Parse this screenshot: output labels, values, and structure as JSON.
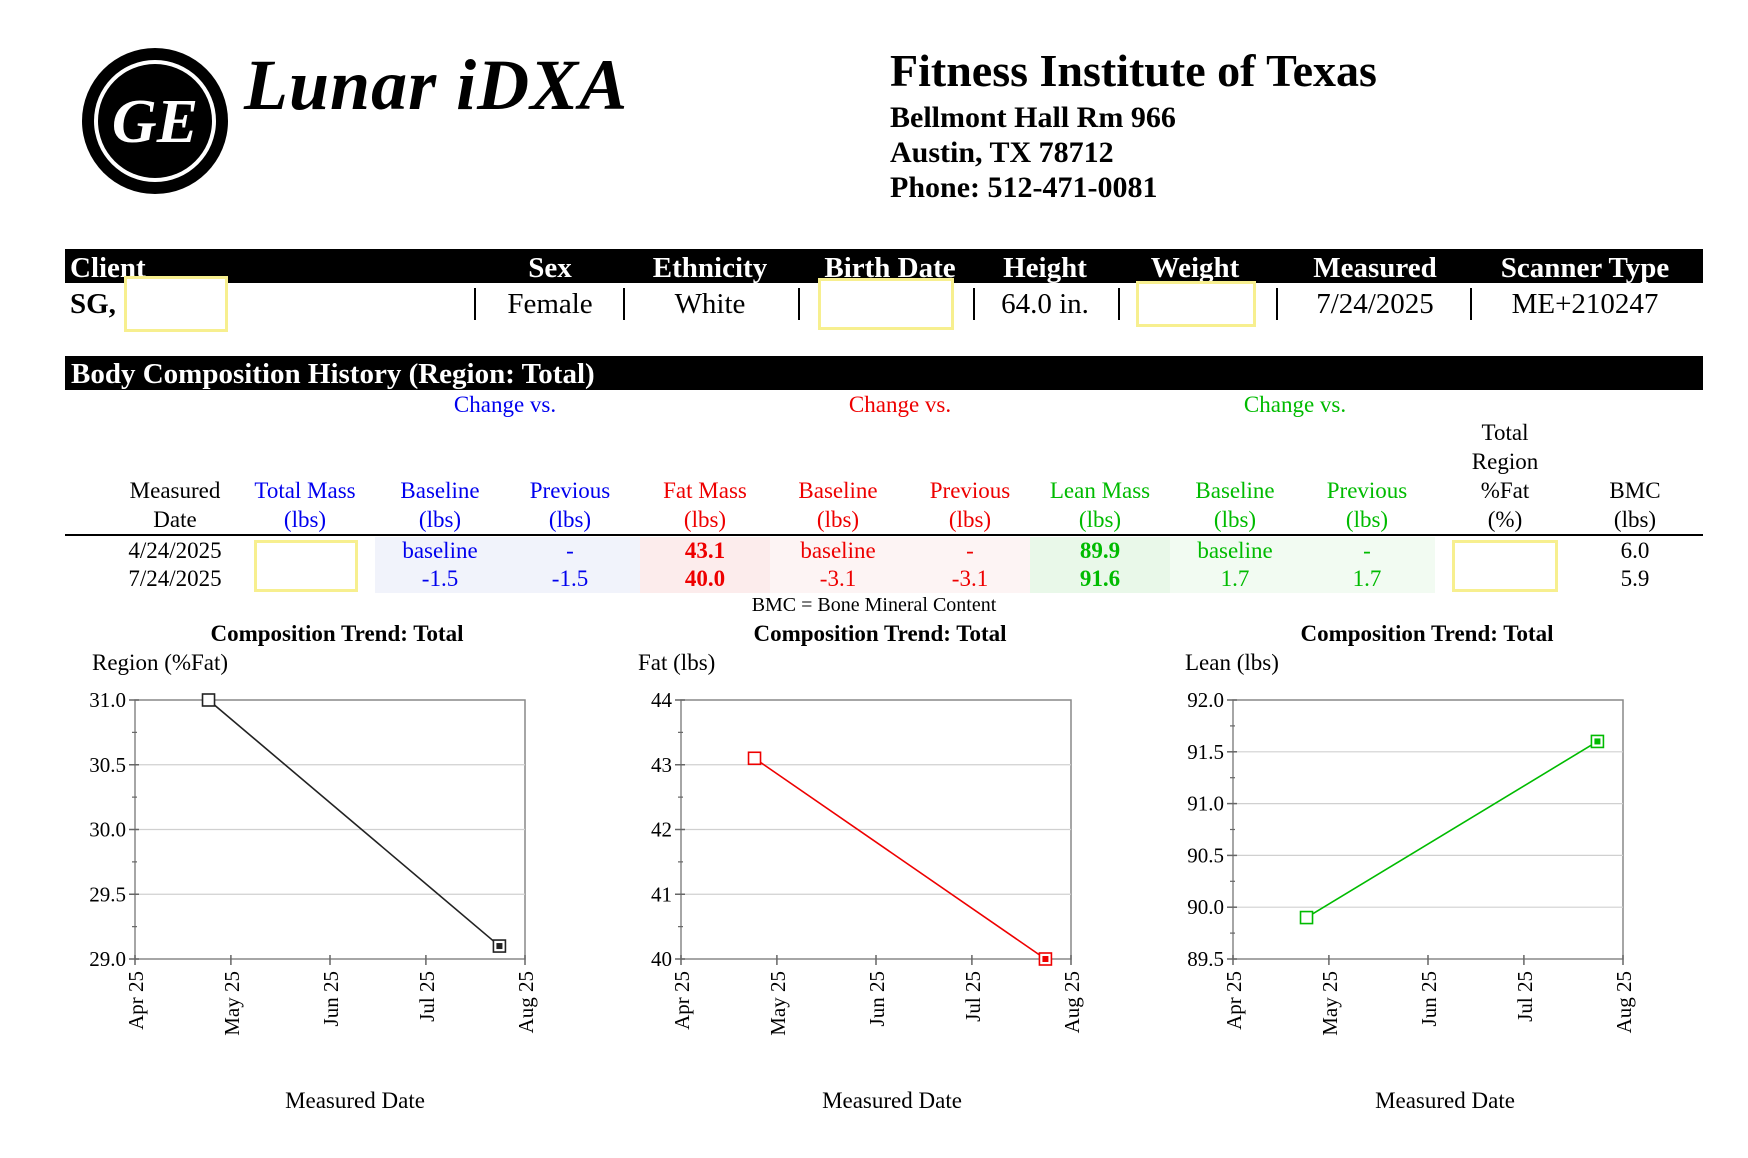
{
  "header": {
    "brand": "Lunar iDXA",
    "logo_text": "GE",
    "org_name": "Fitness Institute of Texas",
    "address_line1": "Bellmont Hall Rm 966",
    "address_line2": "Austin, TX 78712",
    "phone": "Phone: 512-471-0081"
  },
  "client": {
    "labels": {
      "client": "Client",
      "sex": "Sex",
      "ethnicity": "Ethnicity",
      "birth_date": "Birth Date",
      "height": "Height",
      "weight": "Weight",
      "measured": "Measured",
      "scanner_type": "Scanner Type"
    },
    "values": {
      "client": "SG,",
      "sex": "Female",
      "ethnicity": "White",
      "height": "64.0 in.",
      "measured": "7/24/2025",
      "scanner_type": "ME+210247"
    }
  },
  "history": {
    "title": "Body Composition History (Region: Total)",
    "group_labels": {
      "total": "Change vs.",
      "fat": "Change vs.",
      "lean": "Change vs."
    },
    "columns": {
      "measured_date": [
        "Measured",
        "Date"
      ],
      "total_mass": [
        "Total Mass",
        "(lbs)"
      ],
      "total_baseline": [
        "Baseline",
        "(lbs)"
      ],
      "total_previous": [
        "Previous",
        "(lbs)"
      ],
      "fat_mass": [
        "Fat Mass",
        "(lbs)"
      ],
      "fat_baseline": [
        "Baseline",
        "(lbs)"
      ],
      "fat_previous": [
        "Previous",
        "(lbs)"
      ],
      "lean_mass": [
        "Lean Mass",
        "(lbs)"
      ],
      "lean_baseline": [
        "Baseline",
        "(lbs)"
      ],
      "lean_previous": [
        "Previous",
        "(lbs)"
      ],
      "region_fat": [
        "Total",
        "Region",
        "%Fat",
        "(%)"
      ],
      "bmc": [
        "BMC",
        "(lbs)"
      ]
    },
    "rows": [
      {
        "measured_date": "4/24/2025",
        "total_baseline": "baseline",
        "total_previous": "-",
        "fat_mass": "43.1",
        "fat_baseline": "baseline",
        "fat_previous": "-",
        "lean_mass": "89.9",
        "lean_baseline": "baseline",
        "lean_previous": "-",
        "bmc": "6.0"
      },
      {
        "measured_date": "7/24/2025",
        "total_baseline": "-1.5",
        "total_previous": "-1.5",
        "fat_mass": "40.0",
        "fat_baseline": "-3.1",
        "fat_previous": "-3.1",
        "lean_mass": "91.6",
        "lean_baseline": "1.7",
        "lean_previous": "1.7",
        "bmc": "5.9"
      }
    ],
    "note": "BMC = Bone Mineral Content"
  },
  "colors": {
    "total": "#0000ee",
    "fat": "#ee0000",
    "lean": "#00bb00",
    "redaction": "#f7ef8f",
    "total_tint": "#f1f3fb",
    "fat_tint": "#fcecec",
    "lean_tint": "#e9f8e9",
    "chart_grid": "#d0d0d0"
  },
  "chart_data": [
    {
      "type": "line",
      "title": "Composition Trend: Total",
      "ylabel": "Region (%Fat)",
      "xlabel": "Measured Date",
      "x": [
        "2025-04-24",
        "2025-07-24"
      ],
      "series": [
        {
          "values": [
            31.0,
            29.1
          ],
          "color": "#222222"
        }
      ],
      "xlim": [
        "2025-04-01",
        "2025-08-01"
      ],
      "xticks": [
        "Apr 25",
        "May 25",
        "Jun 25",
        "Jul 25",
        "Aug 25"
      ],
      "ylim": [
        29.0,
        31.0
      ],
      "yticks": [
        "29.0",
        "29.5",
        "30.0",
        "30.5",
        "31.0"
      ],
      "grid": true
    },
    {
      "type": "line",
      "title": "Composition Trend: Total",
      "ylabel": "Fat (lbs)",
      "xlabel": "Measured Date",
      "x": [
        "2025-04-24",
        "2025-07-24"
      ],
      "series": [
        {
          "values": [
            43.1,
            40.0
          ],
          "color": "#ee0000"
        }
      ],
      "xlim": [
        "2025-04-01",
        "2025-08-01"
      ],
      "xticks": [
        "Apr 25",
        "May 25",
        "Jun 25",
        "Jul 25",
        "Aug 25"
      ],
      "ylim": [
        40,
        44
      ],
      "yticks": [
        "40",
        "41",
        "42",
        "43",
        "44"
      ],
      "grid": true
    },
    {
      "type": "line",
      "title": "Composition Trend: Total",
      "ylabel": "Lean (lbs)",
      "xlabel": "Measured Date",
      "x": [
        "2025-04-24",
        "2025-07-24"
      ],
      "series": [
        {
          "values": [
            89.9,
            91.6
          ],
          "color": "#00bb00"
        }
      ],
      "xlim": [
        "2025-04-01",
        "2025-08-01"
      ],
      "xticks": [
        "Apr 25",
        "May 25",
        "Jun 25",
        "Jul 25",
        "Aug 25"
      ],
      "ylim": [
        89.5,
        92.0
      ],
      "yticks": [
        "89.5",
        "90.0",
        "90.5",
        "91.0",
        "91.5",
        "92.0"
      ],
      "grid": true
    }
  ]
}
